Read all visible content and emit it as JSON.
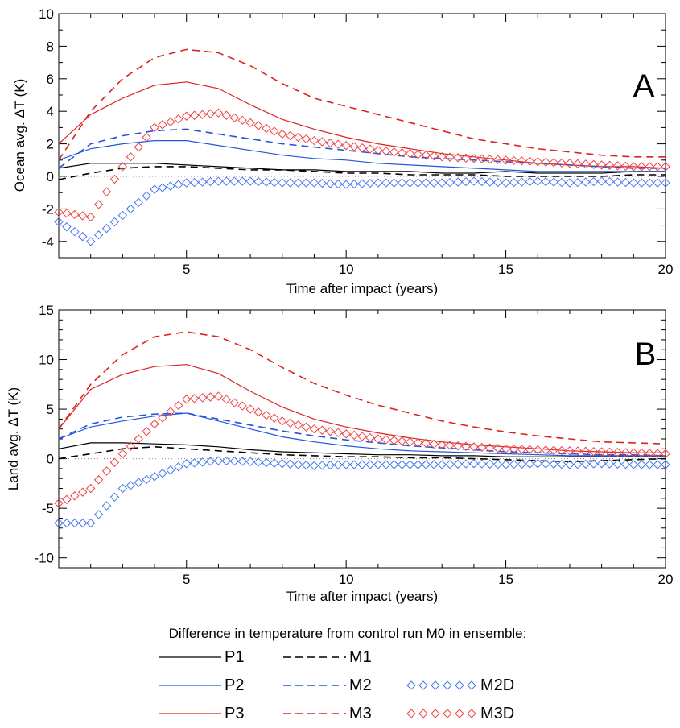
{
  "chart_data": [
    {
      "type": "line",
      "panel_label": "A",
      "xlabel": "Time after impact (years)",
      "ylabel": "Ocean avg. ΔT (K)",
      "xlim": [
        1,
        20
      ],
      "ylim": [
        -5,
        10
      ],
      "xticks": [
        5,
        10,
        15,
        20
      ],
      "yticks": [
        -4,
        -2,
        0,
        2,
        4,
        6,
        8,
        10
      ],
      "zero_reference_line": true,
      "x": [
        1,
        2,
        3,
        4,
        5,
        6,
        7,
        8,
        9,
        10,
        11,
        12,
        13,
        14,
        15,
        16,
        17,
        18,
        19,
        20
      ],
      "series": [
        {
          "name": "P1",
          "color": "#000000",
          "style": "solid",
          "values": [
            0.5,
            0.8,
            0.8,
            0.8,
            0.7,
            0.6,
            0.5,
            0.4,
            0.4,
            0.3,
            0.3,
            0.3,
            0.2,
            0.2,
            0.3,
            0.2,
            0.2,
            0.2,
            0.3,
            0.3
          ]
        },
        {
          "name": "P2",
          "color": "#2255dd",
          "style": "solid",
          "values": [
            1.0,
            1.7,
            2.0,
            2.2,
            2.2,
            1.9,
            1.6,
            1.3,
            1.1,
            1.0,
            0.8,
            0.7,
            0.6,
            0.5,
            0.4,
            0.3,
            0.3,
            0.3,
            0.3,
            0.3
          ]
        },
        {
          "name": "P3",
          "color": "#dd2222",
          "style": "solid",
          "values": [
            2.0,
            3.8,
            4.8,
            5.6,
            5.8,
            5.4,
            4.4,
            3.5,
            2.9,
            2.4,
            2.0,
            1.7,
            1.4,
            1.2,
            1.0,
            0.8,
            0.7,
            0.6,
            0.6,
            0.5
          ]
        },
        {
          "name": "M1",
          "color": "#000000",
          "style": "dashed",
          "values": [
            -0.2,
            0.2,
            0.5,
            0.6,
            0.6,
            0.5,
            0.4,
            0.4,
            0.3,
            0.2,
            0.2,
            0.1,
            0.1,
            0.1,
            0.0,
            0.0,
            0.0,
            0.0,
            0.1,
            0.1
          ]
        },
        {
          "name": "M2",
          "color": "#2255dd",
          "style": "dashed",
          "values": [
            0.5,
            2.0,
            2.5,
            2.8,
            2.9,
            2.6,
            2.3,
            2.0,
            1.8,
            1.6,
            1.4,
            1.2,
            1.1,
            1.0,
            0.9,
            0.8,
            0.7,
            0.6,
            0.5,
            0.5
          ]
        },
        {
          "name": "M3",
          "color": "#dd2222",
          "style": "dashed",
          "values": [
            1.0,
            4.0,
            6.0,
            7.3,
            7.8,
            7.6,
            6.8,
            5.7,
            4.8,
            4.3,
            3.8,
            3.3,
            2.8,
            2.3,
            2.0,
            1.7,
            1.5,
            1.3,
            1.2,
            1.2
          ]
        },
        {
          "name": "M2D",
          "color": "#4477ee",
          "style": "diamond",
          "values": [
            -2.8,
            -4.0,
            -2.4,
            -0.8,
            -0.4,
            -0.3,
            -0.3,
            -0.4,
            -0.4,
            -0.5,
            -0.4,
            -0.4,
            -0.4,
            -0.3,
            -0.4,
            -0.3,
            -0.4,
            -0.3,
            -0.4,
            -0.4
          ]
        },
        {
          "name": "M3D",
          "color": "#ee4444",
          "style": "diamond",
          "values": [
            -2.2,
            -2.5,
            0.6,
            3.0,
            3.7,
            3.9,
            3.3,
            2.6,
            2.2,
            1.9,
            1.6,
            1.4,
            1.2,
            1.1,
            1.0,
            0.9,
            0.8,
            0.7,
            0.6,
            0.6
          ]
        }
      ]
    },
    {
      "type": "line",
      "panel_label": "B",
      "xlabel": "Time after impact (years)",
      "ylabel": "Land avg. ΔT (K)",
      "xlim": [
        1,
        20
      ],
      "ylim": [
        -11,
        15
      ],
      "xticks": [
        5,
        10,
        15,
        20
      ],
      "yticks": [
        -10,
        -5,
        0,
        5,
        10,
        15
      ],
      "zero_reference_line": true,
      "x": [
        1,
        2,
        3,
        4,
        5,
        6,
        7,
        8,
        9,
        10,
        11,
        12,
        13,
        14,
        15,
        16,
        17,
        18,
        19,
        20
      ],
      "series": [
        {
          "name": "P1",
          "color": "#000000",
          "style": "solid",
          "values": [
            1.0,
            1.6,
            1.6,
            1.5,
            1.4,
            1.2,
            0.9,
            0.7,
            0.6,
            0.5,
            0.4,
            0.4,
            0.3,
            0.3,
            0.2,
            0.2,
            0.2,
            0.2,
            0.2,
            0.2
          ]
        },
        {
          "name": "P2",
          "color": "#2255dd",
          "style": "solid",
          "values": [
            2.0,
            3.2,
            3.8,
            4.3,
            4.6,
            3.8,
            3.0,
            2.2,
            1.7,
            1.3,
            1.0,
            0.8,
            0.7,
            0.6,
            0.5,
            0.4,
            0.3,
            0.3,
            0.3,
            0.3
          ]
        },
        {
          "name": "P3",
          "color": "#dd2222",
          "style": "solid",
          "values": [
            3.0,
            7.0,
            8.5,
            9.3,
            9.5,
            8.6,
            6.8,
            5.2,
            4.0,
            3.2,
            2.6,
            2.1,
            1.7,
            1.4,
            1.2,
            1.0,
            0.8,
            0.7,
            0.6,
            0.6
          ]
        },
        {
          "name": "M1",
          "color": "#000000",
          "style": "dashed",
          "values": [
            0.0,
            0.5,
            1.0,
            1.2,
            1.0,
            0.8,
            0.6,
            0.4,
            0.3,
            0.2,
            0.2,
            0.1,
            0.1,
            0.0,
            -0.1,
            -0.2,
            -0.3,
            -0.2,
            -0.1,
            0.0
          ]
        },
        {
          "name": "M2",
          "color": "#2255dd",
          "style": "dashed",
          "values": [
            2.0,
            3.5,
            4.2,
            4.5,
            4.6,
            4.0,
            3.4,
            2.8,
            2.3,
            1.9,
            1.6,
            1.3,
            1.1,
            0.9,
            0.7,
            0.6,
            0.5,
            0.4,
            0.4,
            0.3
          ]
        },
        {
          "name": "M3",
          "color": "#dd2222",
          "style": "dashed",
          "values": [
            3.0,
            7.5,
            10.5,
            12.3,
            12.8,
            12.3,
            11.0,
            9.2,
            7.6,
            6.4,
            5.4,
            4.6,
            3.8,
            3.2,
            2.7,
            2.3,
            2.0,
            1.7,
            1.6,
            1.5
          ]
        },
        {
          "name": "M2D",
          "color": "#4477ee",
          "style": "diamond",
          "values": [
            -6.5,
            -6.5,
            -3.0,
            -1.8,
            -0.5,
            -0.2,
            -0.3,
            -0.5,
            -0.7,
            -0.6,
            -0.6,
            -0.6,
            -0.6,
            -0.5,
            -0.6,
            -0.5,
            -0.6,
            -0.5,
            -0.6,
            -0.6
          ]
        },
        {
          "name": "M3D",
          "color": "#ee4444",
          "style": "diamond",
          "values": [
            -4.5,
            -3.0,
            0.5,
            3.5,
            6.0,
            6.3,
            5.0,
            3.8,
            3.0,
            2.5,
            2.0,
            1.7,
            1.4,
            1.2,
            1.0,
            0.9,
            0.8,
            0.7,
            0.6,
            0.5
          ]
        }
      ]
    }
  ],
  "legend": {
    "title": "Difference in temperature from control run M0 in ensemble:",
    "placement": "bottom",
    "entries": [
      {
        "label": "P1",
        "color": "#000000",
        "style": "solid"
      },
      {
        "label": "M1",
        "color": "#000000",
        "style": "dashed"
      },
      {
        "label": "P2",
        "color": "#2255dd",
        "style": "solid"
      },
      {
        "label": "M2",
        "color": "#2255dd",
        "style": "dashed"
      },
      {
        "label": "M2D",
        "color": "#4477ee",
        "style": "diamond"
      },
      {
        "label": "P3",
        "color": "#dd2222",
        "style": "solid"
      },
      {
        "label": "M3",
        "color": "#dd2222",
        "style": "dashed"
      },
      {
        "label": "M3D",
        "color": "#ee4444",
        "style": "diamond"
      }
    ]
  }
}
